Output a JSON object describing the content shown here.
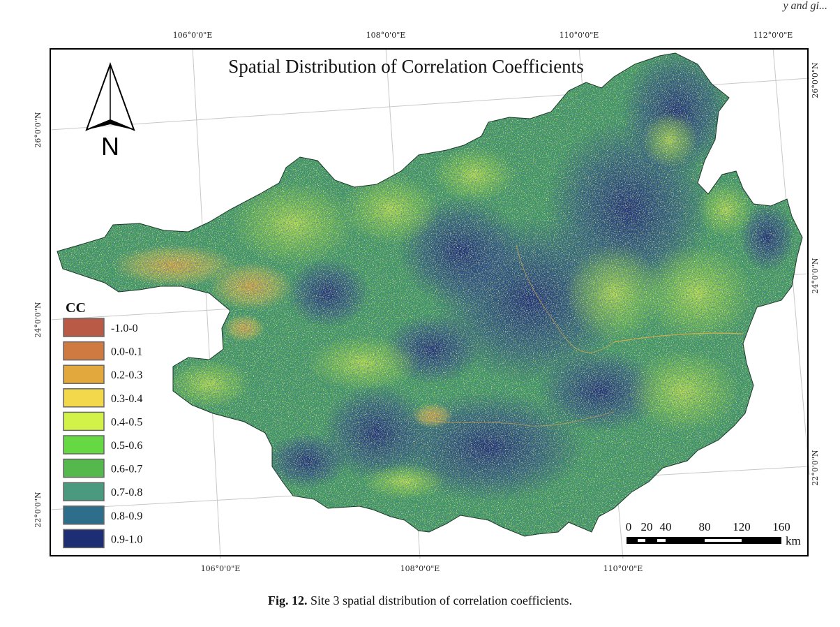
{
  "header": {
    "running_text": "y and gi..."
  },
  "map": {
    "title": "Spatial Distribution of Correlation Coefficients",
    "top_lon_labels": [
      "106°0'0\"E",
      "108°0'0\"E",
      "110°0'0\"E",
      "112°0'0\"E"
    ],
    "bottom_lon_labels": [
      "106°0'0\"E",
      "108°0'0\"E",
      "110°0'0\"E"
    ],
    "left_lat_labels": [
      "26°0'0\"N",
      "24°0'0\"N",
      "22°0'0\"N"
    ],
    "right_lat_labels": [
      "26°0'0\"N",
      "24°0'0\"N",
      "22°0'0\"N"
    ],
    "north_arrow_label": "N",
    "scale_bar": {
      "ticks": [
        "0",
        "20",
        "40",
        "80",
        "120",
        "160"
      ],
      "unit": "km"
    }
  },
  "legend": {
    "title": "CC",
    "classes": [
      {
        "label": "-1.0-0",
        "color": "#b85a45"
      },
      {
        "label": "0.0-0.1",
        "color": "#cf7a40"
      },
      {
        "label": "0.2-0.3",
        "color": "#e2a83e"
      },
      {
        "label": "0.3-0.4",
        "color": "#f2d84a"
      },
      {
        "label": "0.4-0.5",
        "color": "#d2f24a"
      },
      {
        "label": "0.5-0.6",
        "color": "#66d843"
      },
      {
        "label": "0.6-0.7",
        "color": "#55b84c"
      },
      {
        "label": "0.7-0.8",
        "color": "#4a9a80"
      },
      {
        "label": "0.8-0.9",
        "color": "#2e6e8a"
      },
      {
        "label": "0.9-1.0",
        "color": "#1e2e74"
      }
    ]
  },
  "caption": {
    "figure_label": "Fig. 12.",
    "text": "Site 3 spatial distribution of correlation coefficients."
  }
}
